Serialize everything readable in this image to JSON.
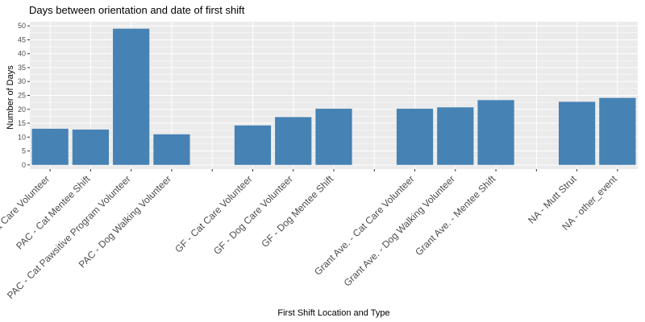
{
  "chart_data": {
    "type": "bar",
    "title": "Days between orientation and date of first shift",
    "xlabel": "First Shift Location and Type",
    "ylabel": "Number of Days",
    "ylim": [
      -1.5,
      51.5
    ],
    "yticks": [
      0,
      5,
      10,
      15,
      20,
      25,
      30,
      35,
      40,
      45,
      50
    ],
    "grid": true,
    "legend": "none",
    "bar_color": "#4682b4",
    "panel_color": "#ebebeb",
    "grid_color": "#ffffff",
    "categories": [
      "PAC - Cat Care Volunteer",
      "PAC - Cat Mentee Shift",
      "PAC - Cat Pawsitive Program Volunteer",
      "PAC - Dog Walking Volunteer",
      "",
      "GF - Cat Care Volunteer",
      "GF - Dog Care Volunteer",
      "GF - Dog Mentee Shift",
      "",
      "Grant Ave. - Cat Care Volunteer",
      "Grant Ave. - Dog Walking Volunteer",
      "Grant Ave. - Mentee Shift",
      "",
      "NA - Mutt Strut",
      "NA - other_event"
    ],
    "values": [
      13,
      12.7,
      49,
      11,
      null,
      14.2,
      17.2,
      20.2,
      null,
      20.2,
      20.7,
      23.3,
      null,
      22.7,
      24.1
    ]
  }
}
